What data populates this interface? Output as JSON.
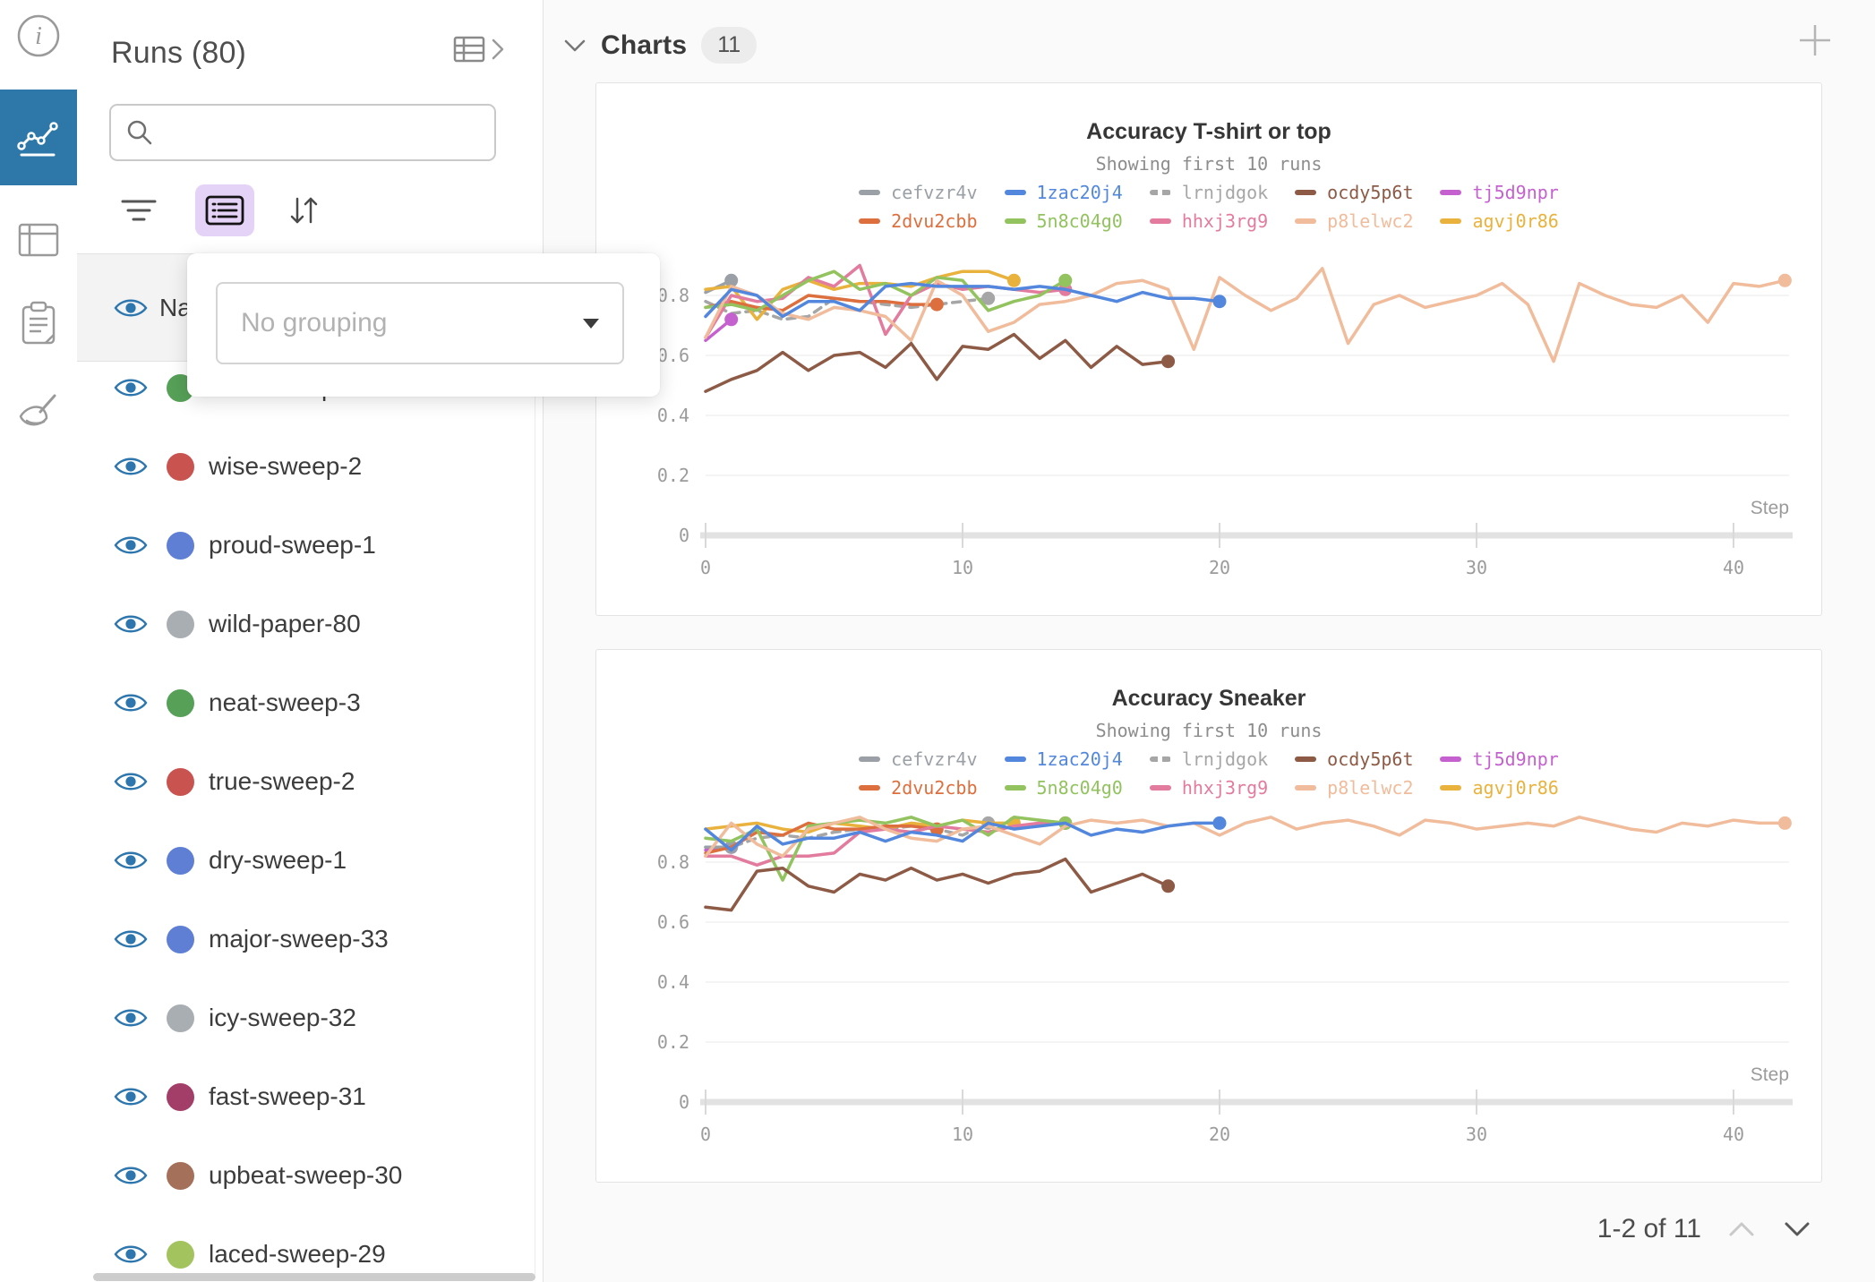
{
  "left_rail": {
    "active_color": "#2d77a9",
    "items": [
      {
        "id": "info",
        "icon": "info-icon",
        "active": false
      },
      {
        "id": "charts",
        "icon": "line-chart-icon",
        "active": true
      },
      {
        "id": "table",
        "icon": "table-icon",
        "active": false
      },
      {
        "id": "notes",
        "icon": "clipboard-icon",
        "active": false
      },
      {
        "id": "cleanup",
        "icon": "broom-icon",
        "active": false
      }
    ]
  },
  "sidebar": {
    "title": "Runs (80)",
    "search": {
      "placeholder": ""
    },
    "grouping_popup": {
      "value": "No grouping"
    },
    "runs_table": {
      "header": "Name",
      "rows": [
        {
          "name": "kind-sweep-3",
          "color": "#56a058"
        },
        {
          "name": "wise-sweep-2",
          "color": "#c9534f"
        },
        {
          "name": "proud-sweep-1",
          "color": "#5e7fd4"
        },
        {
          "name": "wild-paper-80",
          "color": "#a9aeb3"
        },
        {
          "name": "neat-sweep-3",
          "color": "#56a058"
        },
        {
          "name": "true-sweep-2",
          "color": "#c9534f"
        },
        {
          "name": "dry-sweep-1",
          "color": "#5e7fd4"
        },
        {
          "name": "major-sweep-33",
          "color": "#5e7fd4"
        },
        {
          "name": "icy-sweep-32",
          "color": "#a9aeb3"
        },
        {
          "name": "fast-sweep-31",
          "color": "#a23e68"
        },
        {
          "name": "upbeat-sweep-30",
          "color": "#a4705a"
        },
        {
          "name": "laced-sweep-29",
          "color": "#a3c35f"
        }
      ]
    }
  },
  "main": {
    "section": {
      "title": "Charts",
      "count": "11"
    },
    "pagination": {
      "label": "1-2 of 11"
    }
  },
  "chart_data": [
    {
      "type": "line",
      "title": "Accuracy T-shirt or top",
      "subtitle": "Showing first 10 runs",
      "xlabel": "Step",
      "x_start": 0,
      "x_step": 1,
      "xticks": [
        0,
        10,
        20,
        30,
        40
      ],
      "yticks": [
        0,
        0.2,
        0.4,
        0.6,
        0.8
      ],
      "xlim": [
        0,
        42
      ],
      "ylim": [
        0,
        0.95
      ],
      "grid": true,
      "legend_position": "top-center",
      "series": [
        {
          "name": "cefvzr4v",
          "color": "#9aa0a6",
          "dashed": false,
          "end_marker": true,
          "values": [
            0.81,
            0.85
          ]
        },
        {
          "name": "1zac20j4",
          "color": "#5387dd",
          "dashed": false,
          "end_marker": true,
          "values": [
            0.73,
            0.82,
            0.8,
            0.73,
            0.78,
            0.78,
            0.75,
            0.83,
            0.84,
            0.83,
            0.83,
            0.83,
            0.82,
            0.83,
            0.82,
            0.8,
            0.78,
            0.81,
            0.79,
            0.79,
            0.78
          ]
        },
        {
          "name": "lrnjdgok",
          "color": "#a6a6a6",
          "dashed": true,
          "end_marker": true,
          "values": [
            0.78,
            0.74,
            0.75,
            0.72,
            0.73,
            0.79,
            0.78,
            0.77,
            0.76,
            0.77,
            0.78,
            0.79
          ]
        },
        {
          "name": "ocdy5p6t",
          "color": "#8d5a46",
          "dashed": false,
          "end_marker": true,
          "values": [
            0.48,
            0.52,
            0.55,
            0.61,
            0.55,
            0.6,
            0.61,
            0.56,
            0.64,
            0.52,
            0.63,
            0.62,
            0.67,
            0.59,
            0.65,
            0.56,
            0.63,
            0.57,
            0.58
          ]
        },
        {
          "name": "tj5d9npr",
          "color": "#c561cf",
          "dashed": false,
          "end_marker": true,
          "values": [
            0.65,
            0.72
          ]
        },
        {
          "name": "2dvu2cbb",
          "color": "#dd6f3e",
          "dashed": false,
          "end_marker": true,
          "values": [
            0.76,
            0.78,
            0.76,
            0.75,
            0.8,
            0.79,
            0.78,
            0.78,
            0.77,
            0.77
          ]
        },
        {
          "name": "5n8c04g0",
          "color": "#92c35f",
          "dashed": false,
          "end_marker": true,
          "values": [
            0.76,
            0.77,
            0.75,
            0.8,
            0.85,
            0.88,
            0.82,
            0.84,
            0.8,
            0.86,
            0.85,
            0.75,
            0.78,
            0.8,
            0.85
          ]
        },
        {
          "name": "hhxj3rg9",
          "color": "#e27b9d",
          "dashed": false,
          "end_marker": true,
          "values": [
            0.66,
            0.8,
            0.78,
            0.79,
            0.86,
            0.83,
            0.9,
            0.67,
            0.8,
            0.84,
            0.82,
            0.83,
            0.82,
            0.81,
            0.82
          ]
        },
        {
          "name": "p8lelwc2",
          "color": "#f0bc9c",
          "dashed": false,
          "end_marker": true,
          "values": [
            0.66,
            0.83,
            0.8,
            0.74,
            0.72,
            0.76,
            0.75,
            0.73,
            0.65,
            0.85,
            0.8,
            0.68,
            0.71,
            0.77,
            0.78,
            0.8,
            0.84,
            0.85,
            0.82,
            0.62,
            0.86,
            0.8,
            0.75,
            0.79,
            0.89,
            0.64,
            0.77,
            0.8,
            0.76,
            0.78,
            0.8,
            0.84,
            0.77,
            0.58,
            0.84,
            0.8,
            0.77,
            0.76,
            0.8,
            0.71,
            0.84,
            0.83,
            0.85
          ]
        },
        {
          "name": "agvj0r86",
          "color": "#e9b23d",
          "dashed": false,
          "end_marker": true,
          "values": [
            0.82,
            0.83,
            0.72,
            0.82,
            0.85,
            0.82,
            0.84,
            0.84,
            0.83,
            0.86,
            0.88,
            0.88,
            0.85
          ]
        }
      ]
    },
    {
      "type": "line",
      "title": "Accuracy Sneaker",
      "subtitle": "Showing first 10 runs",
      "xlabel": "Step",
      "x_start": 0,
      "x_step": 1,
      "xticks": [
        0,
        10,
        20,
        30,
        40
      ],
      "yticks": [
        0,
        0.2,
        0.4,
        0.6,
        0.8
      ],
      "xlim": [
        0,
        42
      ],
      "ylim": [
        0,
        0.97
      ],
      "grid": true,
      "legend_position": "top-center",
      "series": [
        {
          "name": "cefvzr4v",
          "color": "#9aa0a6",
          "dashed": false,
          "end_marker": true,
          "values": [
            0.85,
            0.85
          ]
        },
        {
          "name": "1zac20j4",
          "color": "#5387dd",
          "dashed": false,
          "end_marker": true,
          "values": [
            0.91,
            0.84,
            0.92,
            0.86,
            0.88,
            0.88,
            0.9,
            0.87,
            0.9,
            0.89,
            0.87,
            0.93,
            0.91,
            0.92,
            0.93,
            0.89,
            0.91,
            0.9,
            0.92,
            0.93,
            0.93
          ]
        },
        {
          "name": "lrnjdgok",
          "color": "#a6a6a6",
          "dashed": true,
          "end_marker": true,
          "values": [
            0.85,
            0.85,
            0.88,
            0.89,
            0.88,
            0.9,
            0.91,
            0.91,
            0.92,
            0.91,
            0.89,
            0.93
          ]
        },
        {
          "name": "ocdy5p6t",
          "color": "#8d5a46",
          "dashed": false,
          "end_marker": true,
          "values": [
            0.65,
            0.64,
            0.77,
            0.78,
            0.72,
            0.7,
            0.76,
            0.74,
            0.78,
            0.74,
            0.76,
            0.73,
            0.76,
            0.77,
            0.81,
            0.7,
            0.73,
            0.76,
            0.72
          ]
        },
        {
          "name": "tj5d9npr",
          "color": "#c561cf",
          "dashed": false,
          "end_marker": true,
          "values": [
            0.84,
            0.85
          ]
        },
        {
          "name": "2dvu2cbb",
          "color": "#dd6f3e",
          "dashed": false,
          "end_marker": true,
          "values": [
            0.83,
            0.85,
            0.9,
            0.89,
            0.93,
            0.91,
            0.91,
            0.92,
            0.92,
            0.91
          ]
        },
        {
          "name": "5n8c04g0",
          "color": "#92c35f",
          "dashed": false,
          "end_marker": true,
          "values": [
            0.88,
            0.87,
            0.91,
            0.74,
            0.92,
            0.93,
            0.94,
            0.93,
            0.95,
            0.92,
            0.94,
            0.89,
            0.95,
            0.94,
            0.93
          ]
        },
        {
          "name": "hhxj3rg9",
          "color": "#e27b9d",
          "dashed": false,
          "end_marker": true,
          "values": [
            0.82,
            0.82,
            0.79,
            0.82,
            0.82,
            0.83,
            0.9,
            0.91,
            0.9,
            0.92,
            0.91,
            0.9,
            0.92,
            0.93,
            0.93
          ]
        },
        {
          "name": "p8lelwc2",
          "color": "#f0bc9c",
          "dashed": false,
          "end_marker": true,
          "values": [
            0.82,
            0.93,
            0.86,
            0.82,
            0.91,
            0.93,
            0.95,
            0.91,
            0.88,
            0.87,
            0.91,
            0.92,
            0.89,
            0.86,
            0.92,
            0.94,
            0.93,
            0.94,
            0.92,
            0.93,
            0.89,
            0.93,
            0.95,
            0.91,
            0.93,
            0.94,
            0.92,
            0.89,
            0.94,
            0.93,
            0.91,
            0.92,
            0.93,
            0.92,
            0.95,
            0.93,
            0.91,
            0.9,
            0.93,
            0.92,
            0.94,
            0.93,
            0.93
          ]
        },
        {
          "name": "agvj0r86",
          "color": "#e9b23d",
          "dashed": false,
          "end_marker": true,
          "values": [
            0.91,
            0.92,
            0.93,
            0.91,
            0.9,
            0.93,
            0.92,
            0.91,
            0.93,
            0.92,
            0.94,
            0.93,
            0.93
          ]
        }
      ]
    }
  ]
}
